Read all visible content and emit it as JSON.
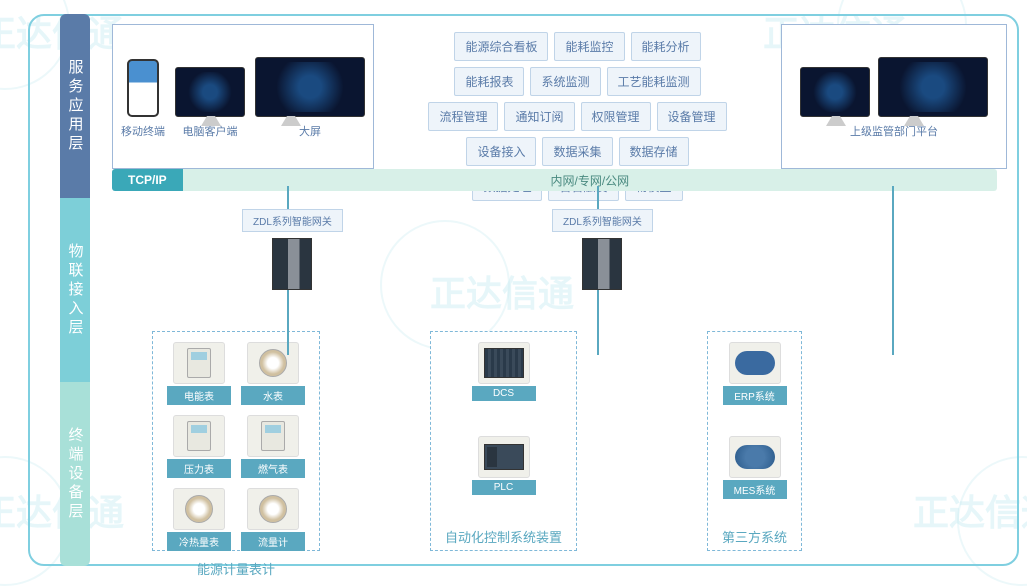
{
  "watermark": "正达信通",
  "layers": {
    "l1": "服务应用层",
    "l2": "物联接入层",
    "l3": "终端设备层"
  },
  "clients": {
    "c1": "移动终端",
    "c2": "电脑客户端",
    "c3": "大屏"
  },
  "tags": {
    "r1": [
      "能源综合看板",
      "能耗监控",
      "能耗分析"
    ],
    "r2": [
      "能耗报表",
      "系统监测",
      "工艺能耗监测"
    ],
    "r3": [
      "流程管理",
      "通知订阅",
      "权限管理",
      "设备管理"
    ],
    "r4": [
      "设备接入",
      "数据采集",
      "数据存储"
    ],
    "r5": [
      "数据处理",
      "告警触发",
      "物模型"
    ]
  },
  "supervisor": "上级监管部门平台",
  "network": {
    "proto": "TCP/IP",
    "label": "内网/专网/公网"
  },
  "gateway": "ZDL系列智能网关",
  "groups": {
    "g1": {
      "title": "能源计量表计",
      "items": [
        "电能表",
        "水表",
        "压力表",
        "燃气表",
        "冷热量表",
        "流量计"
      ]
    },
    "g2": {
      "title": "自动化控制系统装置",
      "items": [
        "DCS",
        "PLC"
      ]
    },
    "g3": {
      "title": "第三方系统",
      "items": [
        "ERP系统",
        "MES系统"
      ]
    }
  },
  "colors": {
    "border": "#7fcfe0",
    "sb1": "#5a7ba8",
    "sb2": "#7dcfd8",
    "sb3": "#a8e0d8",
    "accent": "#5aa8c0"
  }
}
